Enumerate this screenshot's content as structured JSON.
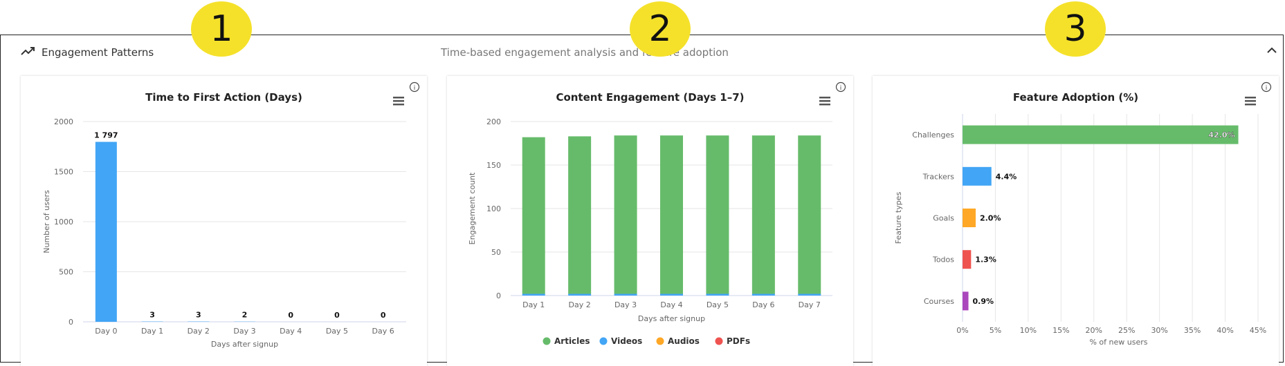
{
  "markers": [
    "1",
    "2",
    "3"
  ],
  "section": {
    "title": "Engagement Patterns",
    "subtitle": "Time-based engagement analysis and feature adoption",
    "title_icon": "trending-up-icon",
    "collapse_icon": "chevron-up-icon"
  },
  "cards": [
    {
      "info_icon": "info-icon",
      "menu_icon": "hamburger-menu-icon",
      "chart_data": {
        "type": "bar",
        "title": "Time to First Action (Days)",
        "xlabel": "Days after signup",
        "ylabel": "Number of users",
        "categories": [
          "Day 0",
          "Day 1",
          "Day 2",
          "Day 3",
          "Day 4",
          "Day 5",
          "Day 6"
        ],
        "values": [
          1797,
          3,
          3,
          2,
          0,
          0,
          0
        ],
        "data_labels": [
          "1 797",
          "3",
          "3",
          "2",
          "0",
          "0",
          "0"
        ],
        "yticks": [
          "0",
          "500",
          "1000",
          "1500",
          "2000"
        ],
        "ylim": [
          0,
          2000
        ],
        "color": "#42a5f5",
        "grid": true
      }
    },
    {
      "info_icon": "info-icon",
      "menu_icon": "hamburger-menu-icon",
      "chart_data": {
        "type": "bar",
        "stacked": true,
        "title": "Content Engagement (Days 1–7)",
        "xlabel": "Days after signup",
        "ylabel": "Engagement count",
        "categories": [
          "Day 1",
          "Day 2",
          "Day 3",
          "Day 4",
          "Day 5",
          "Day 6",
          "Day 7"
        ],
        "series": [
          {
            "name": "Articles",
            "color": "#66bb6a",
            "values": [
              180,
              181,
              182,
              182,
              182,
              182,
              182
            ]
          },
          {
            "name": "Videos",
            "color": "#42a5f5",
            "values": [
              2,
              2,
              2,
              2,
              2,
              2,
              2
            ]
          },
          {
            "name": "Audios",
            "color": "#ffa726",
            "values": [
              0,
              0,
              0,
              0,
              0,
              0,
              0
            ]
          },
          {
            "name": "PDFs",
            "color": "#ef5350",
            "values": [
              0,
              0,
              0,
              0,
              0,
              0,
              0
            ]
          }
        ],
        "yticks": [
          "0",
          "50",
          "100",
          "150",
          "200"
        ],
        "ylim": [
          0,
          200
        ],
        "legend": "bottom",
        "grid": true
      }
    },
    {
      "info_icon": "info-icon",
      "menu_icon": "hamburger-menu-icon",
      "chart_data": {
        "type": "bar",
        "orientation": "horizontal",
        "title": "Feature Adoption (%)",
        "xlabel": "% of new users",
        "ylabel": "Feature types",
        "categories": [
          "Challenges",
          "Trackers",
          "Goals",
          "Todos",
          "Courses"
        ],
        "values": [
          42.0,
          4.4,
          2.0,
          1.3,
          0.9
        ],
        "data_labels": [
          "42.0%",
          "4.4%",
          "2.0%",
          "1.3%",
          "0.9%"
        ],
        "colors": [
          "#66bb6a",
          "#42a5f5",
          "#ffa726",
          "#ef5350",
          "#ab47bc"
        ],
        "xticks": [
          "0%",
          "5%",
          "10%",
          "15%",
          "20%",
          "25%",
          "30%",
          "35%",
          "40%",
          "45%"
        ],
        "xlim": [
          0,
          45
        ],
        "grid": true
      }
    }
  ]
}
